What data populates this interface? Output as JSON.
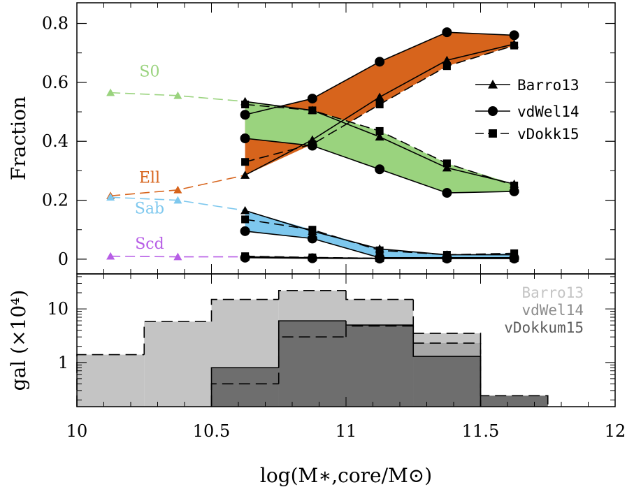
{
  "chart_data": [
    {
      "type": "line",
      "panel": "top",
      "ylabel": "Fraction",
      "xlim": [
        10,
        12
      ],
      "ylim": [
        -0.05,
        0.87
      ],
      "yticks": [
        0,
        0.2,
        0.4,
        0.6,
        0.8
      ],
      "ytick_labels": [
        "0",
        "0.2",
        "0.4",
        "0.6",
        "0.8"
      ],
      "legend": {
        "position": "right",
        "entries": [
          {
            "name": "Barro13",
            "marker": "triangle",
            "dash": "solid"
          },
          {
            "name": "vdWel14",
            "marker": "circle",
            "dash": "solid"
          },
          {
            "name": "vDokk15",
            "marker": "square",
            "dash": "dashed"
          }
        ]
      },
      "type_labels": [
        {
          "name": "S0",
          "color": "#9ad37e",
          "x": 10.27,
          "y": 0.62
        },
        {
          "name": "Ell",
          "color": "#d7641c",
          "x": 10.27,
          "y": 0.26
        },
        {
          "name": "Sab",
          "color": "#7ec8ee",
          "x": 10.27,
          "y": 0.155
        },
        {
          "name": "Scd",
          "color": "#b75ee6",
          "x": 10.27,
          "y": 0.035
        }
      ],
      "low_mass": {
        "x": [
          10.125,
          10.375,
          10.625
        ],
        "S0": [
          0.565,
          0.555,
          0.535
        ],
        "Ell": [
          0.215,
          0.235,
          0.285
        ],
        "Sab": [
          0.21,
          0.2,
          0.165
        ],
        "Scd": [
          0.01,
          0.008,
          0.008
        ]
      },
      "x": [
        10.625,
        10.875,
        11.125,
        11.375,
        11.625
      ],
      "types": [
        {
          "name": "Ell",
          "color": "#d7641c",
          "Barro13": [
            0.285,
            0.405,
            0.55,
            0.675,
            0.73
          ],
          "vdWel14": [
            0.49,
            0.545,
            0.67,
            0.77,
            0.76
          ],
          "vDokk15": [
            0.33,
            0.39,
            0.525,
            0.655,
            0.725
          ]
        },
        {
          "name": "S0",
          "color": "#9ad37e",
          "Barro13": [
            0.535,
            0.505,
            0.415,
            0.31,
            0.255
          ],
          "vdWel14": [
            0.41,
            0.385,
            0.305,
            0.225,
            0.23
          ],
          "vDokk15": [
            0.525,
            0.505,
            0.435,
            0.325,
            0.25
          ]
        },
        {
          "name": "Sab",
          "color": "#7ec8ee",
          "Barro13": [
            0.165,
            0.095,
            0.035,
            0.015,
            0.015
          ],
          "vdWel14": [
            0.095,
            0.07,
            0.005,
            0.005,
            0.005
          ],
          "vDokk15": [
            0.135,
            0.1,
            0.03,
            0.015,
            0.02
          ]
        },
        {
          "name": "Scd",
          "color": "#b75ee6",
          "Barro13": [
            0.008,
            0.005,
            0.003,
            0.003,
            0.003
          ],
          "vdWel14": [
            0.005,
            0.003,
            0.002,
            0.002,
            0.002
          ],
          "vDokk15": [
            0.01,
            0.006,
            0.003,
            0.003,
            0.003
          ]
        }
      ]
    },
    {
      "type": "histogram",
      "panel": "bottom",
      "ylabel": "gal (×10⁴)",
      "xlabel": "log(M∗,core/M⊙)",
      "xlim": [
        10,
        12
      ],
      "ylim": [
        0.15,
        45
      ],
      "yscale": "log",
      "yticks": [
        1,
        10
      ],
      "ytick_labels": [
        "1",
        "10"
      ],
      "xticks": [
        10,
        10.5,
        11,
        11.5,
        12
      ],
      "xtick_labels": [
        "10",
        "10.5",
        "11",
        "11.5",
        "12"
      ],
      "bin_edges": [
        10,
        10.25,
        10.5,
        10.75,
        11,
        11.25,
        11.5,
        11.75,
        12
      ],
      "legend": {
        "position": "top-right",
        "entries": [
          {
            "name": "Barro13",
            "color": "#c4c4c4"
          },
          {
            "name": "vdWel14",
            "color": "#8c8c8c"
          },
          {
            "name": "vDokkum15",
            "color": "#5c5c5c"
          }
        ]
      },
      "series": [
        {
          "name": "Barro13",
          "fill": "#c4c4c4",
          "values": [
            1.4,
            5.8,
            15,
            22,
            15,
            3.5,
            null,
            null
          ]
        },
        {
          "name": "vdWel14",
          "fill": "#6e6e6e",
          "values": [
            null,
            null,
            0.8,
            6,
            5,
            1.3,
            null,
            null
          ]
        },
        {
          "name": "vDokkum15",
          "fill": "#6e6e6e",
          "values": [
            null,
            null,
            0.4,
            3,
            4.8,
            2.3,
            0.24,
            null
          ]
        }
      ],
      "dashed_series": [
        {
          "values": [
            1.4,
            5.8,
            15,
            22,
            15,
            3.5,
            null,
            null
          ]
        },
        {
          "values": [
            null,
            null,
            0.4,
            3,
            4.8,
            2.3,
            0.24,
            null
          ]
        }
      ]
    }
  ]
}
